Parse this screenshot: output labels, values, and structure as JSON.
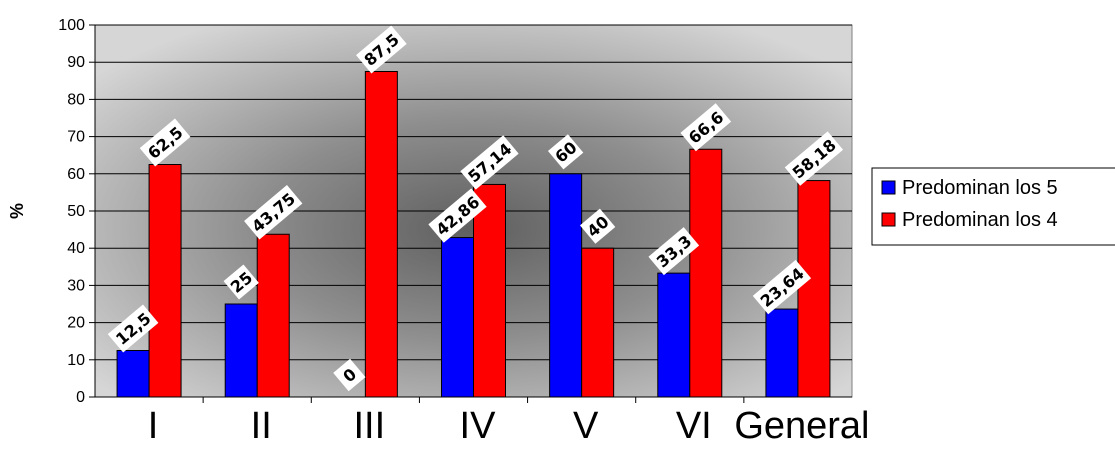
{
  "chart_data": {
    "type": "bar",
    "categories": [
      "I",
      "II",
      "III",
      "IV",
      "V",
      "VI",
      "General"
    ],
    "series": [
      {
        "name": "Predominan los 5",
        "color": "#0000FF",
        "values": [
          12.5,
          25,
          0,
          42.86,
          60,
          33.3,
          23.64
        ],
        "labels": [
          "12,5",
          "25",
          "0",
          "42,86",
          "60",
          "33,3",
          "23,64"
        ]
      },
      {
        "name": "Predominan los 4",
        "color": "#FF0000",
        "values": [
          62.5,
          43.75,
          87.5,
          57.14,
          40,
          66.6,
          58.18
        ],
        "labels": [
          "62,5",
          "43,75",
          "87,5",
          "57,14",
          "40",
          "66,6",
          "58,18"
        ]
      }
    ],
    "ylabel": "%",
    "xlabel": "",
    "ylim": [
      0,
      100
    ],
    "yticks": [
      0,
      10,
      20,
      30,
      40,
      50,
      60,
      70,
      80,
      90,
      100
    ],
    "grid": true,
    "legend_position": "right",
    "background": "radial-gray-gradient"
  }
}
